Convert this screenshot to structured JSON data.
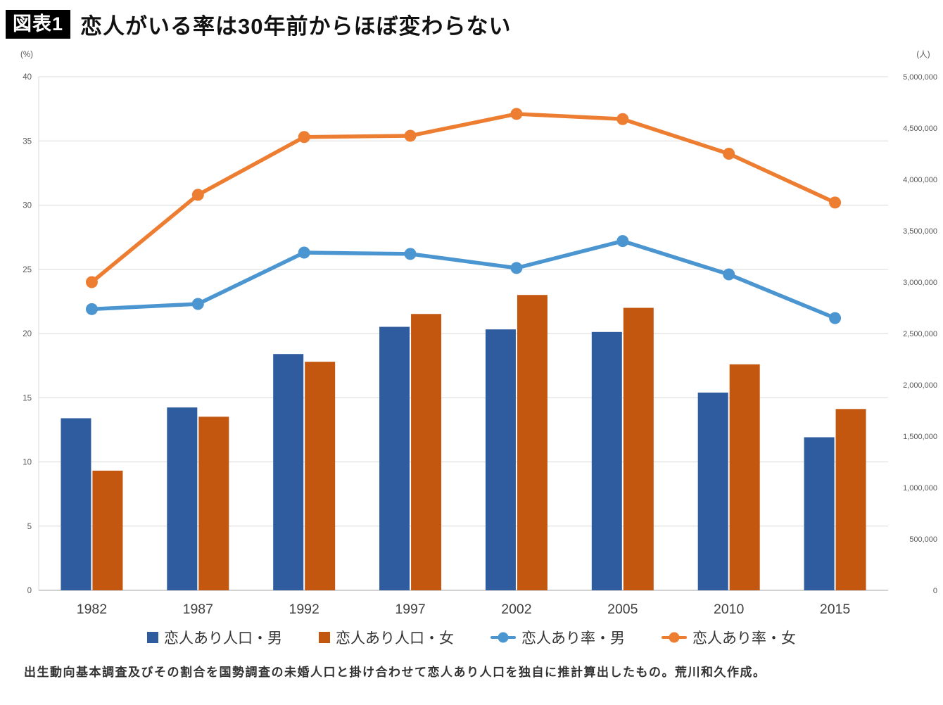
{
  "header": {
    "badge": "図表1",
    "title": "恋人がいる率は30年前からほぼ変わらない"
  },
  "chart_data": {
    "type": "combo-bar-line",
    "categories": [
      "1982",
      "1987",
      "1992",
      "1997",
      "2002",
      "2005",
      "2010",
      "2015"
    ],
    "left_axis": {
      "label": "(%)",
      "min": 0,
      "max": 40,
      "step": 5,
      "ticks": [
        0,
        5,
        10,
        15,
        20,
        25,
        30,
        35,
        40
      ]
    },
    "right_axis": {
      "label": "(人)",
      "min": 0,
      "max": 5000000,
      "step": 500000,
      "tick_labels": [
        "0",
        "500,000",
        "1,000,000",
        "1,500,000",
        "2,000,000",
        "2,500,000",
        "3,000,000",
        "3,500,000",
        "4,000,000",
        "4,500,000",
        "5,000,000"
      ]
    },
    "bar_series": [
      {
        "name": "恋人あり人口・男",
        "color": "#2e5c9e",
        "axis": "right",
        "values": [
          1675000,
          1780000,
          2300000,
          2565000,
          2540000,
          2515000,
          1925000,
          1490000
        ]
      },
      {
        "name": "恋人あり人口・女",
        "color": "#c4570f",
        "axis": "right",
        "values": [
          1165000,
          1690000,
          2225000,
          2690000,
          2875000,
          2750000,
          2200000,
          1765000
        ]
      }
    ],
    "line_series": [
      {
        "name": "恋人あり率・男",
        "color": "#4b96d1",
        "axis": "left",
        "values": [
          21.9,
          22.3,
          26.3,
          26.2,
          25.1,
          27.2,
          24.6,
          21.2
        ]
      },
      {
        "name": "恋人あり率・女",
        "color": "#ed7d31",
        "axis": "left",
        "values": [
          24.0,
          30.8,
          35.3,
          35.4,
          37.1,
          36.7,
          34.0,
          30.2
        ]
      }
    ],
    "grid": true,
    "legend_position": "bottom",
    "colors": {
      "gridline": "#d9d9d9",
      "axis_line": "#a6a6a6",
      "tick_text": "#595959",
      "year_text": "#404040"
    }
  },
  "footnote": "出生動向基本調査及びその割合を国勢調査の未婚人口と掛け合わせて恋人あり人口を独自に推計算出したもの。荒川和久作成。"
}
